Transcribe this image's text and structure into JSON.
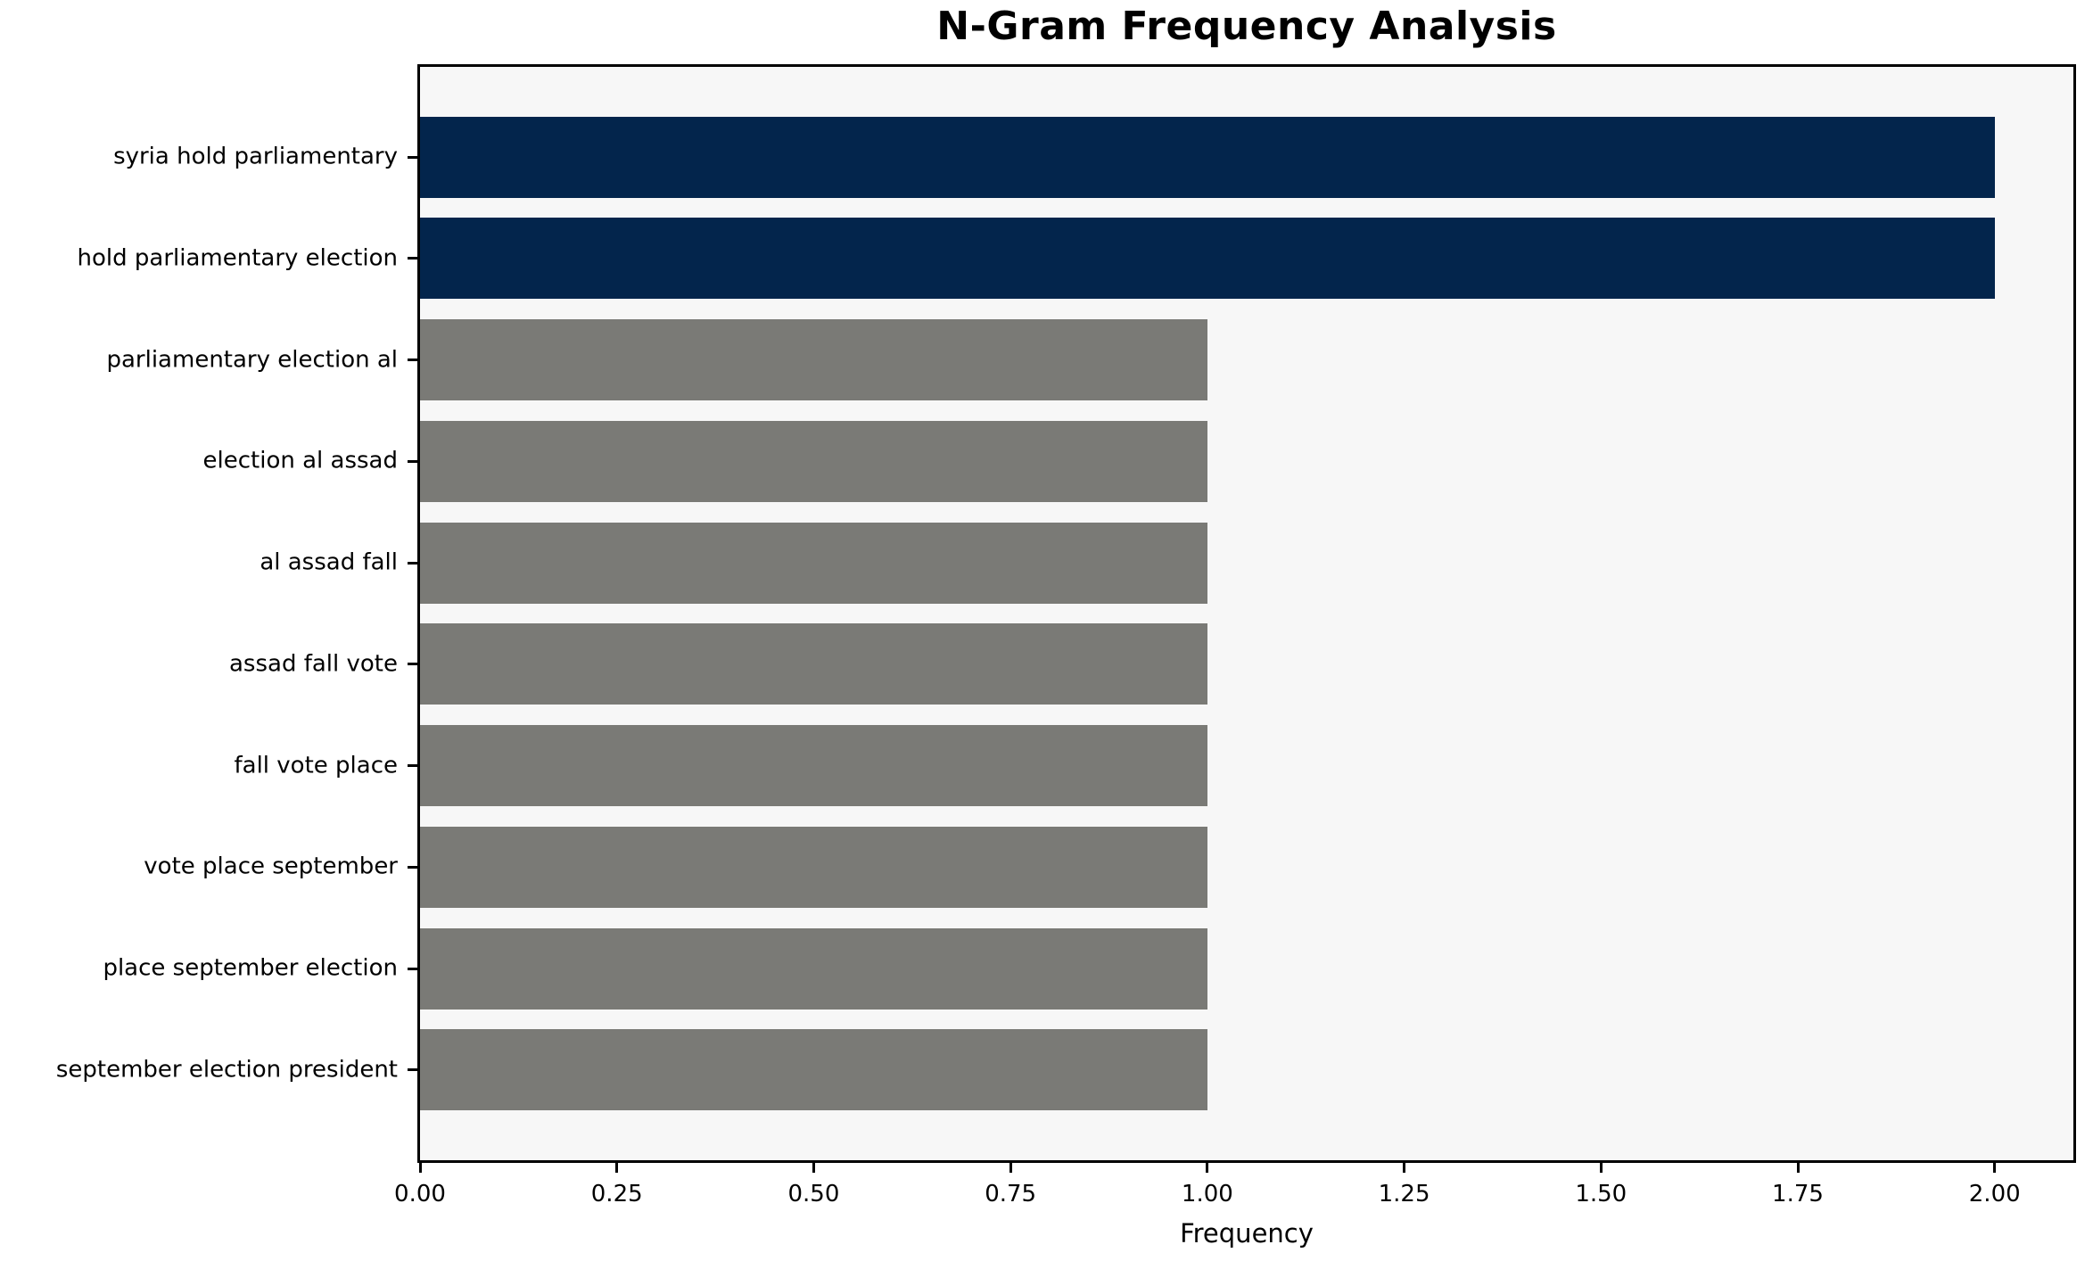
{
  "chart_data": {
    "type": "bar",
    "orientation": "horizontal",
    "title": "N-Gram Frequency Analysis",
    "xlabel": "Frequency",
    "ylabel": "",
    "categories": [
      "syria hold parliamentary",
      "hold parliamentary election",
      "parliamentary election al",
      "election al assad",
      "al assad fall",
      "assad fall vote",
      "fall vote place",
      "vote place september",
      "place september election",
      "september election president"
    ],
    "values": [
      2,
      2,
      1,
      1,
      1,
      1,
      1,
      1,
      1,
      1
    ],
    "bar_colors": [
      "#03254c",
      "#03254c",
      "#7a7a76",
      "#7a7a76",
      "#7a7a76",
      "#7a7a76",
      "#7a7a76",
      "#7a7a76",
      "#7a7a76",
      "#7a7a76"
    ],
    "xlim": [
      0,
      2.1
    ],
    "x_ticks": [
      {
        "value": 0.0,
        "label": "0.00"
      },
      {
        "value": 0.25,
        "label": "0.25"
      },
      {
        "value": 0.5,
        "label": "0.50"
      },
      {
        "value": 0.75,
        "label": "0.75"
      },
      {
        "value": 1.0,
        "label": "1.00"
      },
      {
        "value": 1.25,
        "label": "1.25"
      },
      {
        "value": 1.5,
        "label": "1.50"
      },
      {
        "value": 1.75,
        "label": "1.75"
      },
      {
        "value": 2.0,
        "label": "2.00"
      }
    ],
    "grid": false,
    "legend_position": "none",
    "colors": {
      "highlight_bar": "#03254c",
      "base_bar": "#7a7a76",
      "plot_background": "#f7f7f7",
      "figure_background": "#ffffff",
      "spine": "#000000",
      "text": "#000000"
    }
  }
}
